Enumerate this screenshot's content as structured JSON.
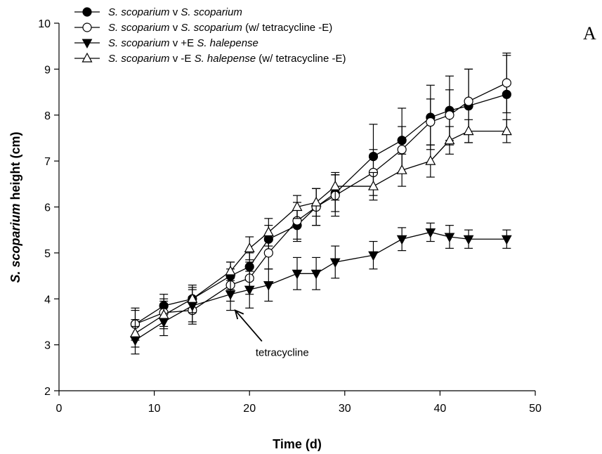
{
  "chart_data": {
    "type": "line",
    "panel_label": "A",
    "xlabel": "Time (d)",
    "ylabel": {
      "italic": "S. scoparium",
      "rest": " height (cm)"
    },
    "xlim": [
      0,
      50
    ],
    "ylim": [
      2,
      10
    ],
    "xticks": [
      0,
      10,
      20,
      30,
      40,
      50
    ],
    "yticks": [
      2,
      3,
      4,
      5,
      6,
      7,
      8,
      9,
      10
    ],
    "grid": false,
    "legend_position": "top-left",
    "series": [
      {
        "name": [
          {
            "text": "S. scoparium",
            "italic": true
          },
          {
            "text": " v ",
            "italic": false
          },
          {
            "text": "S. scoparium",
            "italic": true
          }
        ],
        "marker": "filled-circle",
        "x": [
          8,
          11,
          14,
          18,
          20,
          22,
          25,
          27,
          29,
          33,
          36,
          39,
          41,
          43,
          47
        ],
        "y": [
          3.45,
          3.85,
          4.0,
          4.5,
          4.7,
          5.3,
          5.6,
          6.0,
          6.3,
          7.1,
          7.45,
          7.95,
          8.1,
          8.2,
          8.45
        ],
        "err": [
          0.3,
          0.25,
          0.25,
          0.3,
          0.3,
          0.3,
          0.35,
          0.4,
          0.4,
          0.7,
          0.7,
          0.7,
          0.75,
          0.8,
          0.85
        ]
      },
      {
        "name": [
          {
            "text": "S. scoparium",
            "italic": true
          },
          {
            "text": " v ",
            "italic": false
          },
          {
            "text": "S. scoparium",
            "italic": true
          },
          {
            "text": " (w/ tetracycline -E)",
            "italic": false
          }
        ],
        "marker": "open-circle",
        "x": [
          8,
          11,
          14,
          18,
          20,
          22,
          25,
          27,
          29,
          33,
          36,
          39,
          41,
          43,
          47
        ],
        "y": [
          3.45,
          3.7,
          3.75,
          4.3,
          4.45,
          5.0,
          5.7,
          6.0,
          6.25,
          6.75,
          7.25,
          7.85,
          8.0,
          8.3,
          8.7
        ],
        "err": [
          0.35,
          0.3,
          0.3,
          0.35,
          0.35,
          0.35,
          0.4,
          0.4,
          0.45,
          0.5,
          0.5,
          0.5,
          0.55,
          0.7,
          0.65
        ]
      },
      {
        "name": [
          {
            "text": "S. scoparium",
            "italic": true
          },
          {
            "text": " v +E ",
            "italic": false
          },
          {
            "text": "S. halepense",
            "italic": true
          }
        ],
        "marker": "filled-triangle-down",
        "x": [
          8,
          11,
          14,
          18,
          20,
          22,
          25,
          27,
          29,
          33,
          36,
          39,
          41,
          43,
          47
        ],
        "y": [
          3.1,
          3.5,
          3.85,
          4.1,
          4.2,
          4.3,
          4.55,
          4.55,
          4.8,
          4.95,
          5.3,
          5.45,
          5.35,
          5.3,
          5.3
        ],
        "err": [
          0.3,
          0.3,
          0.35,
          0.35,
          0.4,
          0.35,
          0.35,
          0.35,
          0.35,
          0.3,
          0.25,
          0.2,
          0.25,
          0.2,
          0.2
        ]
      },
      {
        "name": [
          {
            "text": "S. scoparium",
            "italic": true
          },
          {
            "text": " v -E ",
            "italic": false
          },
          {
            "text": "S. halepense",
            "italic": true
          },
          {
            "text": "  (w/ tetracycline -E)",
            "italic": false
          }
        ],
        "marker": "open-triangle-up",
        "x": [
          8,
          11,
          14,
          18,
          20,
          22,
          25,
          27,
          29,
          33,
          36,
          39,
          41,
          43,
          47
        ],
        "y": [
          3.25,
          3.65,
          4.0,
          4.6,
          5.1,
          5.45,
          6.0,
          6.1,
          6.45,
          6.45,
          6.8,
          7.0,
          7.45,
          7.65,
          7.65
        ],
        "err": [
          0.3,
          0.3,
          0.3,
          0.2,
          0.25,
          0.3,
          0.25,
          0.3,
          0.3,
          0.3,
          0.35,
          0.35,
          0.3,
          0.25,
          0.25
        ]
      }
    ],
    "annotations": [
      {
        "text": "tetracycline",
        "arrow_to": [
          18.5,
          3.75
        ]
      }
    ]
  }
}
